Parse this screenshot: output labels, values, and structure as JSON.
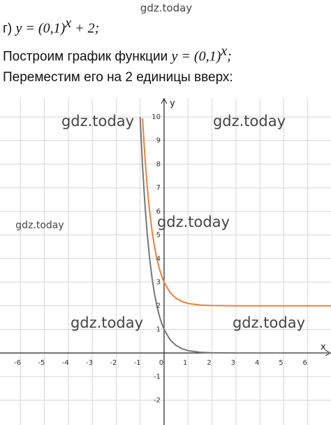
{
  "document": {
    "line1": {
      "prefix": "г) ",
      "formula": "y = (0,1)",
      "sup": "x",
      "rest": " + 2;"
    },
    "line2": {
      "prefix": "Построим график функции ",
      "formula": "y = (0,1)",
      "sup": "x",
      "rest": ";"
    },
    "line3": "Переместим его на 2 единицы вверх:",
    "watermarks": [
      "gdz.today",
      "gdz.today",
      "gdz.today",
      "gdz.today",
      "gdz.today",
      "gdz.today",
      "gdz.today"
    ]
  },
  "chart_data": {
    "type": "line",
    "x_label": "x",
    "y_label": "y",
    "x": [
      -1,
      -0.9,
      -0.8,
      -0.7,
      -0.6,
      -0.5,
      -0.4,
      -0.3,
      -0.2,
      -0.1,
      0,
      0.25,
      0.5,
      0.75,
      1,
      1.5,
      2,
      3,
      4,
      5,
      6,
      6.97
    ],
    "series": [
      {
        "color": "#777777",
        "values": [
          10,
          7.94,
          6.31,
          5.01,
          3.98,
          3.16,
          2.51,
          2.0,
          1.58,
          1.26,
          1,
          0.56,
          0.32,
          0.18,
          0.1,
          0.03,
          0.01,
          0,
          0,
          0,
          0,
          0
        ]
      },
      {
        "color": "#e8823a",
        "values": [
          null,
          9.94,
          8.31,
          7.01,
          5.98,
          5.16,
          4.51,
          4.0,
          3.58,
          3.26,
          3,
          2.56,
          2.32,
          2.18,
          2.1,
          2.03,
          2.01,
          2,
          2,
          2,
          2,
          2
        ]
      }
    ],
    "xlim": [
      -6.85,
      6.97
    ],
    "ylim": [
      -3.05,
      10.8
    ],
    "xticks": [
      -6,
      -5,
      -4,
      -3,
      -2,
      -1,
      0,
      1,
      2,
      3,
      4,
      5,
      6
    ],
    "yticks": [
      -2,
      -1,
      1,
      2,
      3,
      4,
      5,
      6,
      7,
      8,
      9,
      10
    ],
    "grid": true
  }
}
